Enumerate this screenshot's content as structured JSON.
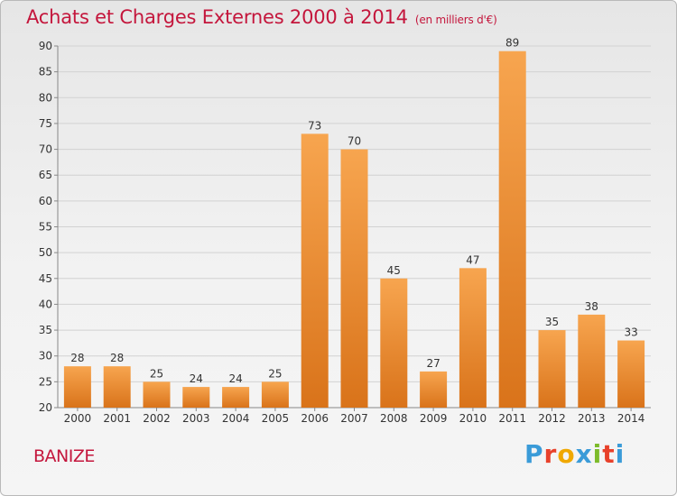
{
  "header": {
    "title": "Achats et Charges Externes 2000 à 2014",
    "subtitle": "(en milliers d'€)"
  },
  "footer": {
    "commune": "BANIZE",
    "brand": "Proxiti"
  },
  "colors": {
    "title": "#c4163c",
    "bar_top": "#f7a54f",
    "bar_bottom": "#d9731a",
    "brand_letters": [
      "#3a9bd8",
      "#e8412b",
      "#f0a800",
      "#3a9bd8",
      "#7dbb2a",
      "#e8412b",
      "#3a9bd8"
    ]
  },
  "chart_data": {
    "type": "bar",
    "categories": [
      "2000",
      "2001",
      "2002",
      "2003",
      "2004",
      "2005",
      "2006",
      "2007",
      "2008",
      "2009",
      "2010",
      "2011",
      "2012",
      "2013",
      "2014"
    ],
    "values": [
      28,
      28,
      25,
      24,
      24,
      25,
      73,
      70,
      45,
      27,
      47,
      89,
      35,
      38,
      33
    ],
    "data_labels": [
      "28",
      "28",
      "25",
      "24",
      "24",
      "25",
      "73",
      "70",
      "45",
      "27",
      "47",
      "89",
      "35",
      "38",
      "33"
    ],
    "title": "Achats et Charges Externes 2000 à 2014",
    "xlabel": "",
    "ylabel": "",
    "ylim": [
      20,
      90
    ],
    "yticks": [
      20,
      25,
      30,
      35,
      40,
      45,
      50,
      55,
      60,
      65,
      70,
      75,
      80,
      85,
      90
    ],
    "grid": true
  }
}
